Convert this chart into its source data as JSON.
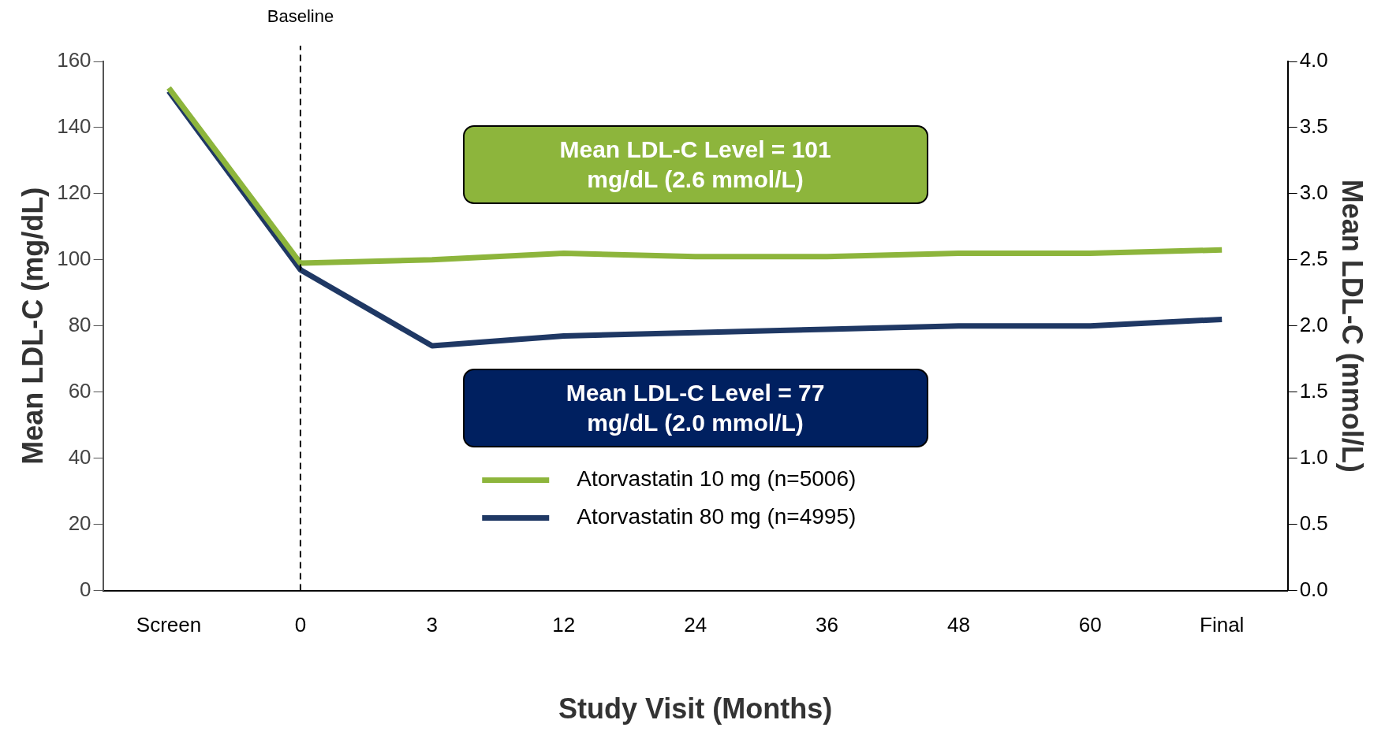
{
  "chart_data": {
    "type": "line",
    "xlabel": "Study Visit (Months)",
    "ylabel": "Mean LDL-C (mg/dL)",
    "y2label": "Mean LDL-C (mmol/L)",
    "categories": [
      "Screen",
      "0",
      "3",
      "12",
      "24",
      "36",
      "48",
      "60",
      "Final"
    ],
    "series": [
      {
        "name": "Atorvastatin 10 mg (n=5006)",
        "color": "#8db53c",
        "values": [
          152,
          99,
          100,
          102,
          101,
          101,
          102,
          102,
          103
        ]
      },
      {
        "name": "Atorvastatin 80 mg (n=4995)",
        "color": "#1f3864",
        "values": [
          151,
          97,
          74,
          77,
          78,
          79,
          80,
          80,
          82
        ]
      }
    ],
    "ylim": [
      0,
      160
    ],
    "yticks": [
      0,
      20,
      40,
      60,
      80,
      100,
      120,
      140,
      160
    ],
    "y2lim": [
      0,
      4
    ],
    "y2ticks": [
      {
        "value": 0,
        "label": "0.0"
      },
      {
        "value": 0.5,
        "label": "0.5"
      },
      {
        "value": 1,
        "label": "1.0"
      },
      {
        "value": 1.5,
        "label": "1.5"
      },
      {
        "value": 2,
        "label": "2.0"
      },
      {
        "value": 2.5,
        "label": "2.5"
      },
      {
        "value": 3,
        "label": "3.0"
      },
      {
        "value": 3.5,
        "label": "3.5"
      },
      {
        "value": 4,
        "label": "4.0"
      }
    ],
    "ref_lines": [
      {
        "axis": "x",
        "value": "0",
        "label": "Baseline",
        "line_style": "dashed",
        "color": "#000000"
      }
    ],
    "annotations": [
      "Mean LDL-C Level = 101\nmg/dL (2.6 mmol/L)",
      "Mean LDL-C Level = 77\nmg/dL (2.0 mmol/L)"
    ],
    "grid": false,
    "legend": "bottom",
    "marker": "none",
    "line_style": "solid"
  }
}
